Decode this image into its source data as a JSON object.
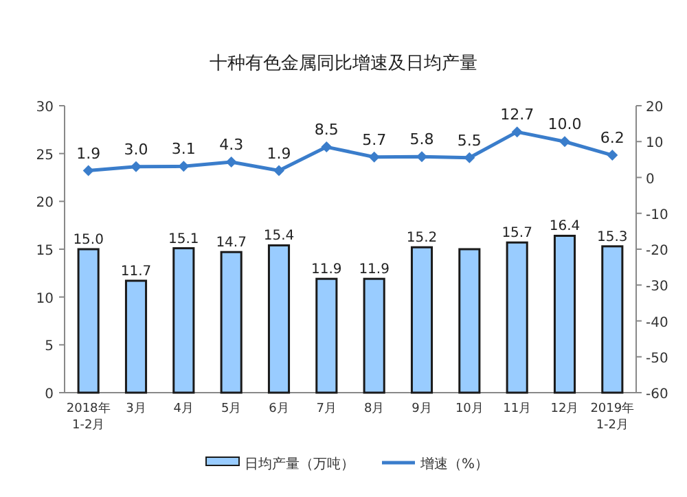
{
  "chart_data": {
    "type": "bar",
    "title": "十种有色金属同比增速及日均产量",
    "categories": [
      "2018年\n1-2月",
      "3月",
      "4月",
      "5月",
      "6月",
      "7月",
      "8月",
      "9月",
      "10月",
      "11月",
      "12月",
      "2019年\n1-2月"
    ],
    "ylim": [
      0,
      30
    ],
    "yticks": [
      0,
      5,
      10,
      15,
      20,
      25,
      30
    ],
    "y2lim": [
      -60,
      20
    ],
    "y2ticks": [
      -60,
      -50,
      -40,
      -30,
      -20,
      -10,
      0,
      10,
      20
    ],
    "grid": false,
    "legend": "bottom",
    "marker": "diamond",
    "series": [
      {
        "name": "日均产量（万吨）",
        "color": "#99ccff",
        "values": [
          15.0,
          11.7,
          15.1,
          14.7,
          15.4,
          11.9,
          11.9,
          15.2,
          15.0,
          15.7,
          16.4,
          15.3
        ],
        "value_labels": [
          "15.0",
          "11.7",
          "15.1",
          "14.7",
          "15.4",
          "11.9",
          "11.9",
          "15.2",
          null,
          "15.7",
          "16.4",
          "15.3"
        ]
      },
      {
        "name": "增速（%）",
        "type": "line",
        "axis": "y2",
        "color": "#3a7dcb",
        "values": [
          1.9,
          3.0,
          3.1,
          4.3,
          1.9,
          8.5,
          5.7,
          5.8,
          5.5,
          12.7,
          10.0,
          6.2
        ],
        "value_labels": [
          "1.9",
          "3.0",
          "3.1",
          "4.3",
          "1.9",
          "8.5",
          "5.7",
          "5.8",
          "5.5",
          "12.7",
          "10.0",
          "6.2"
        ]
      }
    ]
  }
}
